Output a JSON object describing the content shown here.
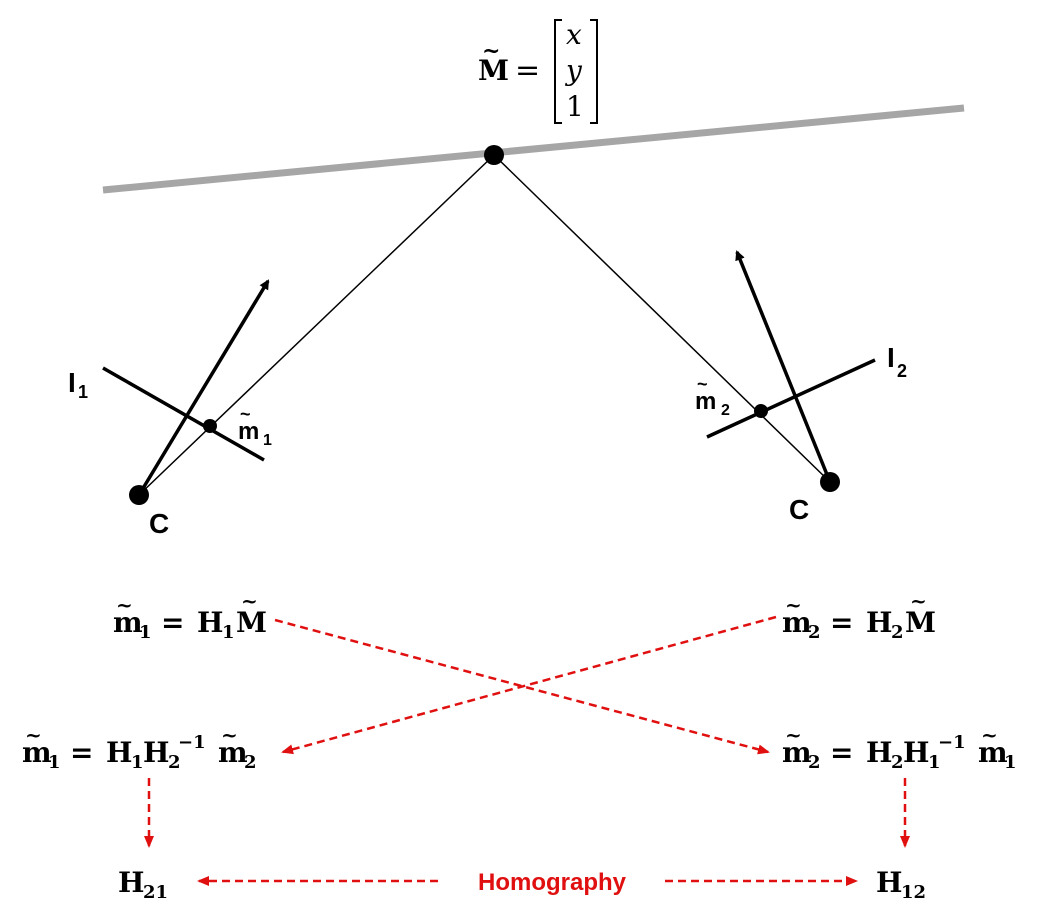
{
  "point": {
    "name": "M",
    "tilde": "~",
    "equals": "=",
    "vector": [
      "x",
      "y",
      "1"
    ]
  },
  "cameras": {
    "left": {
      "image_plane": "I",
      "image_plane_sub": "1",
      "center": "C",
      "point": "m",
      "point_sub": "1"
    },
    "right": {
      "image_plane": "I",
      "image_plane_sub": "2",
      "center": "C",
      "point": "m",
      "point_sub": "2"
    }
  },
  "equations": {
    "eq1": {
      "lhs": "m",
      "lhs_sub": "1",
      "op": "=",
      "H": "H",
      "H_sub": "1",
      "M": "M"
    },
    "eq2": {
      "lhs": "m",
      "lhs_sub": "2",
      "op": "=",
      "H": "H",
      "H_sub": "2",
      "M": "M"
    },
    "eq3": {
      "lhs": "m",
      "lhs_sub": "1",
      "op": "=",
      "Ha": "H",
      "Ha_sub": "1",
      "Hb": "H",
      "Hb_sub": "2",
      "Hb_sup": "−1",
      "rhs": "m",
      "rhs_sub": "2"
    },
    "eq4": {
      "lhs": "m",
      "lhs_sub": "2",
      "op": "=",
      "Ha": "H",
      "Ha_sub": "2",
      "Hb": "H",
      "Hb_sub": "1",
      "Hb_sup": "−1",
      "rhs": "m",
      "rhs_sub": "1"
    }
  },
  "results": {
    "h21": {
      "H": "H",
      "sub": "21"
    },
    "h12": {
      "H": "H",
      "sub": "12"
    },
    "homography": "Homography"
  },
  "colors": {
    "plane": "#a6a6a6",
    "arrows": "#e01010",
    "ink": "#000000"
  }
}
